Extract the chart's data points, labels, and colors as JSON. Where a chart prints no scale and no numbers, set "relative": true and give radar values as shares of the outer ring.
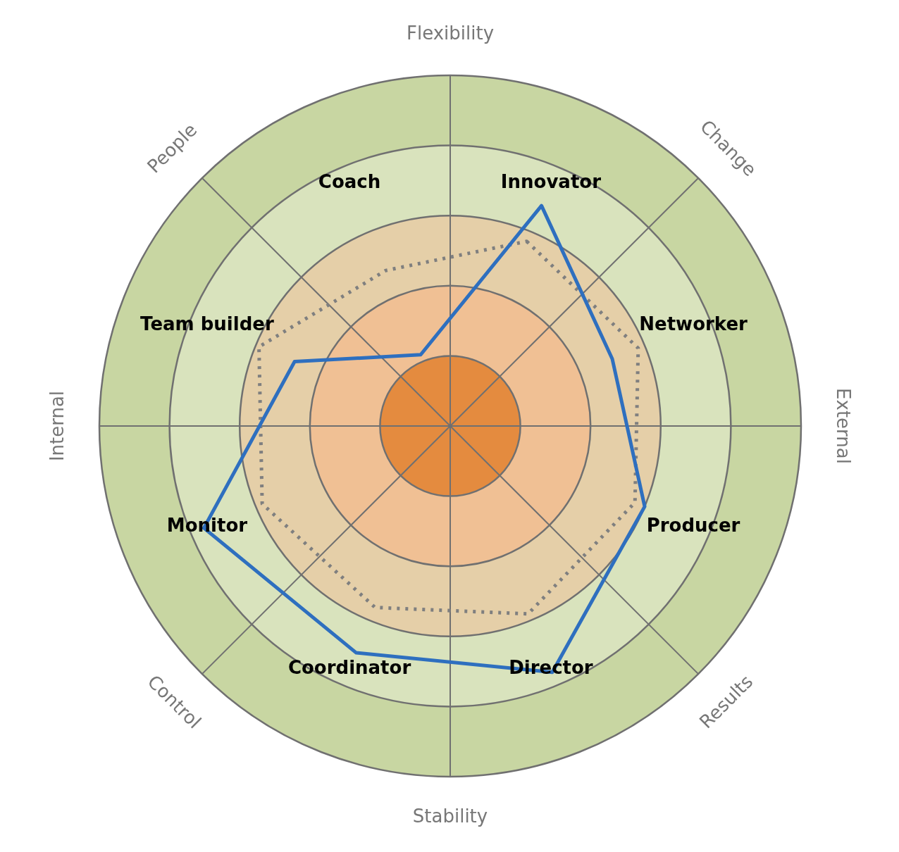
{
  "chart_data": {
    "type": "radar",
    "relative": true,
    "categories": [
      "Flexibility",
      "Innovator",
      "Change",
      "Networker",
      "External",
      "Producer",
      "Results",
      "Director",
      "Stability",
      "Coordinator",
      "Control",
      "Monitor",
      "Internal",
      "Team builder",
      "People",
      "Coach"
    ],
    "series": [
      {
        "color": "#2e6fbf",
        "line_style": "solid",
        "values": [
          null,
          0.68,
          null,
          0.5,
          null,
          0.6,
          null,
          0.76,
          null,
          0.7,
          null,
          0.76,
          null,
          0.48,
          null,
          0.22
        ]
      },
      {
        "color": "#7f7f7f",
        "line_style": "dotted",
        "values": [
          null,
          0.57,
          null,
          0.58,
          null,
          0.57,
          null,
          0.58,
          null,
          0.56,
          null,
          0.58,
          null,
          0.59,
          null,
          0.48
        ]
      }
    ],
    "grid": true,
    "legend": false,
    "marker": "none"
  }
}
